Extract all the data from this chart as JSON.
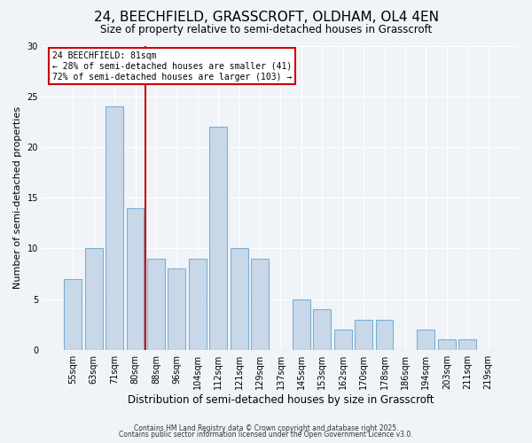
{
  "title": "24, BEECHFIELD, GRASSCROFT, OLDHAM, OL4 4EN",
  "subtitle": "Size of property relative to semi-detached houses in Grasscroft",
  "xlabel": "Distribution of semi-detached houses by size in Grasscroft",
  "ylabel": "Number of semi-detached properties",
  "bar_labels": [
    "55sqm",
    "63sqm",
    "71sqm",
    "80sqm",
    "88sqm",
    "96sqm",
    "104sqm",
    "112sqm",
    "121sqm",
    "129sqm",
    "137sqm",
    "145sqm",
    "153sqm",
    "162sqm",
    "170sqm",
    "178sqm",
    "186sqm",
    "194sqm",
    "203sqm",
    "211sqm",
    "219sqm"
  ],
  "bar_values": [
    7,
    10,
    24,
    14,
    9,
    8,
    9,
    22,
    10,
    9,
    0,
    5,
    4,
    2,
    3,
    3,
    0,
    2,
    1,
    1,
    0
  ],
  "bar_color": "#c8d8e8",
  "bar_edge_color": "#7bafd4",
  "highlight_index": 3,
  "highlight_line_color": "#cc0000",
  "annotation_title": "24 BEECHFIELD: 81sqm",
  "annotation_line1": "← 28% of semi-detached houses are smaller (41)",
  "annotation_line2": "72% of semi-detached houses are larger (103) →",
  "annotation_box_facecolor": "#ffffff",
  "annotation_box_edgecolor": "#cc0000",
  "ylim": [
    0,
    30
  ],
  "yticks": [
    0,
    5,
    10,
    15,
    20,
    25,
    30
  ],
  "background_color": "#f0f4f8",
  "grid_color": "#ffffff",
  "footer1": "Contains HM Land Registry data © Crown copyright and database right 2025.",
  "footer2": "Contains public sector information licensed under the Open Government Licence v3.0.",
  "title_fontsize": 11,
  "subtitle_fontsize": 8.5,
  "xlabel_fontsize": 8.5,
  "ylabel_fontsize": 8,
  "tick_fontsize": 7,
  "annotation_fontsize": 7,
  "footer_fontsize": 5.5
}
